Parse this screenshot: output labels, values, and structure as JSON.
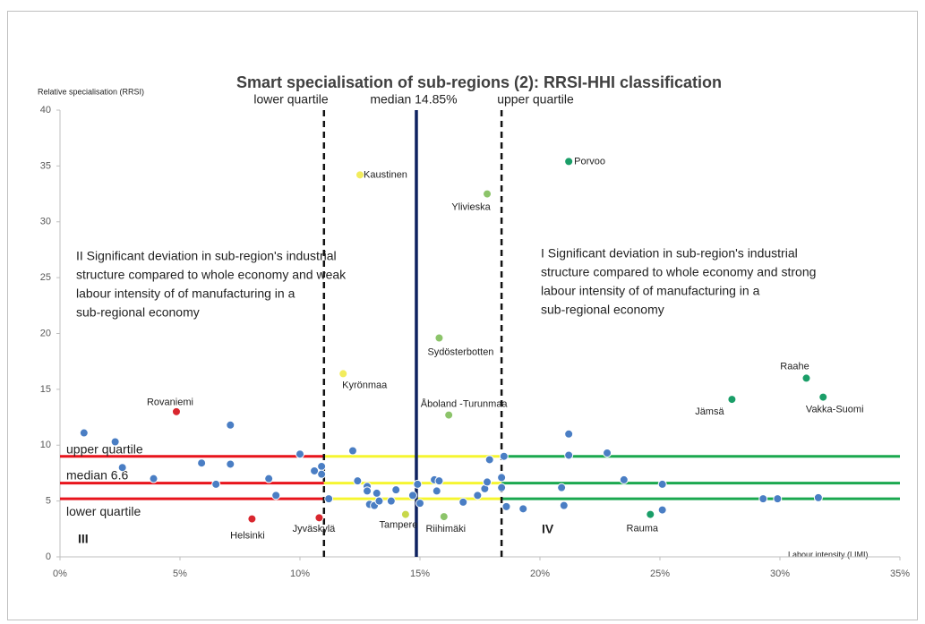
{
  "chart_data": {
    "type": "scatter",
    "title": "Smart specialisation of sub-regions (2): RRSI-HHI classification",
    "ylabel": "Relative specialisation (RRSI)",
    "xlabel": "Labour intensity (LIMI)",
    "xlim": [
      0,
      35
    ],
    "ylim": [
      0,
      40
    ],
    "xticks": [
      {
        "value": 0,
        "label": "0%"
      },
      {
        "value": 5,
        "label": "5%"
      },
      {
        "value": 10,
        "label": "10%"
      },
      {
        "value": 15,
        "label": "15%"
      },
      {
        "value": 20,
        "label": "20%"
      },
      {
        "value": 25,
        "label": "25%"
      },
      {
        "value": 30,
        "label": "30%"
      },
      {
        "value": 35,
        "label": "35%"
      }
    ],
    "yticks": [
      0,
      5,
      10,
      15,
      20,
      25,
      30,
      35,
      40
    ],
    "x": [
      4.85,
      8.0,
      10.8,
      14.4,
      12.5,
      11.8,
      17.8,
      15.8,
      16.2,
      16.0,
      21.2,
      31.1,
      28.0,
      31.8,
      24.6,
      1.0,
      2.3,
      2.6,
      3.9,
      5.9,
      7.1,
      7.1,
      6.5,
      8.7,
      9.0,
      10.0,
      10.6,
      10.9,
      10.9,
      11.2,
      12.2,
      12.4,
      12.8,
      12.8,
      12.9,
      13.1,
      13.2,
      13.3,
      13.8,
      14.0,
      14.7,
      14.9,
      15.0,
      15.6,
      15.7,
      15.8,
      16.8,
      17.4,
      17.7,
      17.8,
      17.9,
      18.4,
      18.4,
      18.5,
      18.6,
      19.3,
      20.9,
      21.0,
      21.2,
      21.2,
      22.8,
      23.5,
      25.1,
      25.1,
      29.3,
      29.9,
      31.6
    ],
    "values": [
      13.0,
      3.4,
      3.5,
      3.8,
      34.2,
      16.4,
      32.5,
      19.6,
      12.7,
      3.6,
      35.4,
      16.0,
      14.1,
      14.3,
      3.8,
      11.1,
      10.3,
      8.0,
      7.0,
      8.4,
      11.8,
      8.3,
      6.5,
      7.0,
      5.5,
      9.2,
      7.7,
      8.1,
      7.4,
      5.2,
      9.5,
      6.8,
      6.3,
      5.9,
      4.7,
      4.6,
      5.7,
      5.0,
      5.0,
      6.0,
      5.5,
      6.5,
      4.8,
      6.9,
      5.9,
      6.8,
      4.9,
      5.5,
      6.1,
      6.7,
      8.7,
      6.2,
      7.1,
      9.0,
      4.5,
      4.3,
      6.2,
      4.6,
      9.1,
      11.0,
      9.3,
      6.9,
      4.2,
      6.5,
      5.2,
      5.2,
      5.3
    ],
    "colors": [
      "#d9262e",
      "#d9262e",
      "#d9262e",
      "#c8d84a",
      "#f2ec5c",
      "#f2ec5c",
      "#8cc46a",
      "#8cc46a",
      "#8cc46a",
      "#8cc46a",
      "#1a9e68",
      "#1a9e68",
      "#1a9e68",
      "#1a9e68",
      "#1a9e68",
      "#4a7ec4",
      "#4a7ec4",
      "#4a7ec4",
      "#4a7ec4",
      "#4a7ec4",
      "#4a7ec4",
      "#4a7ec4",
      "#4a7ec4",
      "#4a7ec4",
      "#4a7ec4",
      "#4a7ec4",
      "#4a7ec4",
      "#4a7ec4",
      "#4a7ec4",
      "#4a7ec4",
      "#4a7ec4",
      "#4a7ec4",
      "#4a7ec4",
      "#4a7ec4",
      "#4a7ec4",
      "#4a7ec4",
      "#4a7ec4",
      "#4a7ec4",
      "#4a7ec4",
      "#4a7ec4",
      "#4a7ec4",
      "#4a7ec4",
      "#4a7ec4",
      "#4a7ec4",
      "#4a7ec4",
      "#4a7ec4",
      "#4a7ec4",
      "#4a7ec4",
      "#4a7ec4",
      "#4a7ec4",
      "#4a7ec4",
      "#4a7ec4",
      "#4a7ec4",
      "#4a7ec4",
      "#4a7ec4",
      "#4a7ec4",
      "#4a7ec4",
      "#4a7ec4",
      "#4a7ec4",
      "#4a7ec4",
      "#4a7ec4",
      "#4a7ec4",
      "#4a7ec4",
      "#4a7ec4",
      "#4a7ec4",
      "#4a7ec4",
      "#4a7ec4"
    ],
    "point_labels": [
      "Rovaniemi",
      "Helsinki",
      "Jyväskylä",
      "Tampere",
      "Kaustinen",
      "Kyrönmaa",
      "Ylivieska",
      "Sydösterbotten",
      "Åboland -Turunmaa",
      "Riihimäki",
      "Porvoo",
      "Raahe",
      "Jämsä",
      "Vakka-Suomi",
      "Rauma",
      null,
      null,
      null,
      null,
      null,
      null,
      null,
      null,
      null,
      null,
      null,
      null,
      null,
      null,
      null,
      null,
      null,
      null,
      null,
      null,
      null,
      null,
      null,
      null,
      null,
      null,
      null,
      null,
      null,
      null,
      null,
      null,
      null,
      null,
      null,
      null,
      null,
      null,
      null,
      null,
      null,
      null,
      null,
      null,
      null,
      null,
      null,
      null,
      null,
      null,
      null,
      null
    ],
    "vlines": [
      {
        "value": 11.0,
        "label": "lower quartile",
        "color": "#111111",
        "dashed": true
      },
      {
        "value": 14.85,
        "label": "median 14.85%",
        "color": "#0e2260",
        "dashed": false
      },
      {
        "value": 18.4,
        "label": "upper quartile",
        "color": "#111111",
        "dashed": true
      }
    ],
    "hlines": [
      {
        "value": 9.0,
        "label": "upper quartile"
      },
      {
        "value": 6.6,
        "label": "median 6.6"
      },
      {
        "value": 5.2,
        "label": "lower quartile"
      }
    ],
    "segment_colors": [
      "#e8141c",
      "#f5f530",
      "#1aa84f"
    ],
    "quadrants": [
      {
        "lines": [
          "II  Significant deviation in sub-region's industrial",
          "structure compared to whole economy and weak",
          "labour intensity of of manufacturing in a",
          "sub-regional economy"
        ]
      },
      {
        "lines": [
          "I  Significant deviation in sub-region's industrial",
          "structure compared to whole economy and strong",
          "labour intensity of of manufacturing in a",
          "sub-regional economy"
        ]
      },
      {
        "lines": [
          "III"
        ]
      },
      {
        "lines": [
          "IV"
        ]
      }
    ]
  }
}
